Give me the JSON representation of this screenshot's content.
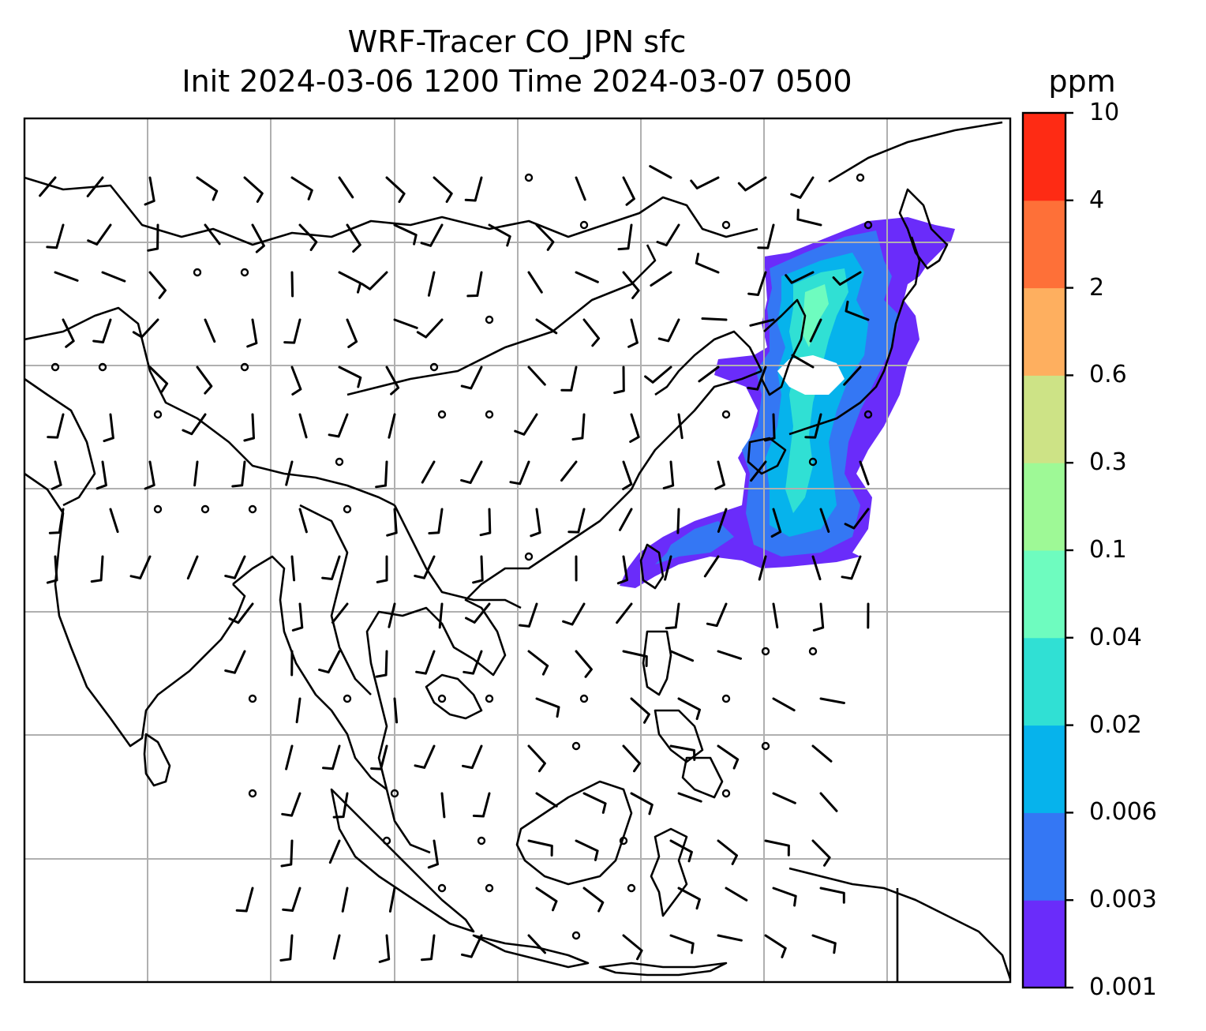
{
  "title": {
    "line1": "WRF-Tracer CO_JPN sfc",
    "line2": "Init 2024-03-06 1200 Time 2024-03-07 0500"
  },
  "colorbar": {
    "unit": "ppm",
    "levels": [
      "0.001",
      "0.003",
      "0.006",
      "0.02",
      "0.04",
      "0.1",
      "0.3",
      "0.6",
      "2",
      "4",
      "10"
    ],
    "colors": [
      "#6a2cfa",
      "#3477f4",
      "#06b3ec",
      "#30e0d4",
      "#6efcbf",
      "#9ef996",
      "#cde386",
      "#feaf5f",
      "#fe7038",
      "#fe2b14"
    ]
  },
  "map": {
    "coastline_color": "#000000",
    "grid_color": "#b0b0b0",
    "barb_color": "#000000"
  }
}
